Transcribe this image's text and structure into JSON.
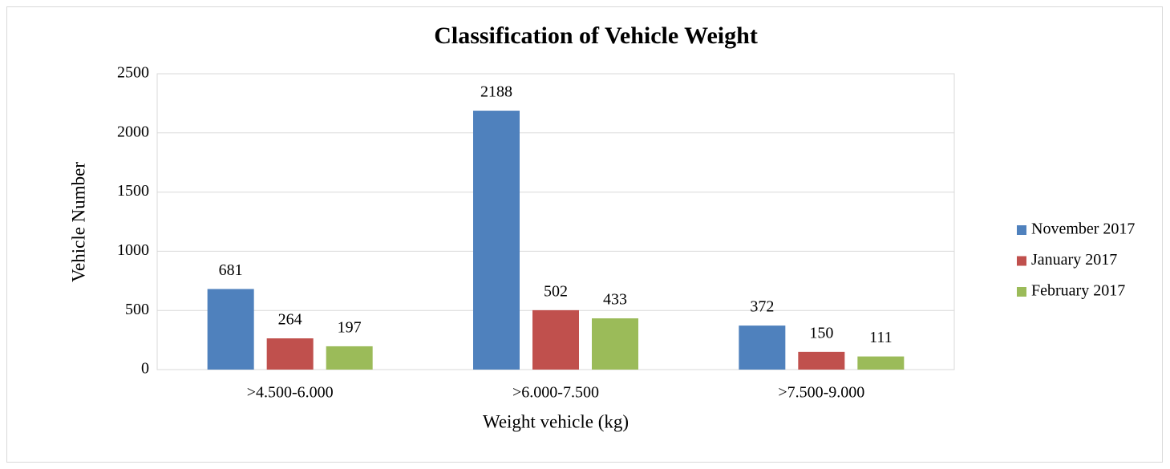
{
  "chart_data": {
    "type": "bar",
    "title": "Classification of Vehicle Weight",
    "x_label": "Weight vehicle (kg)",
    "y_label": "Vehicle Number",
    "categories": [
      ">4.500-6.000",
      ">6.000-7.500",
      ">7.500-9.000"
    ],
    "series": [
      {
        "name": "November 2017",
        "color": "#4f81bd",
        "values": [
          681,
          2188,
          372
        ]
      },
      {
        "name": "January 2017",
        "color": "#c0504d",
        "values": [
          264,
          502,
          150
        ]
      },
      {
        "name": "February 2017",
        "color": "#9bbb59",
        "values": [
          197,
          433,
          111
        ]
      }
    ],
    "ylim": [
      0,
      2500
    ],
    "yticks": [
      0,
      500,
      1000,
      1500,
      2000,
      2500
    ],
    "grid": true,
    "legend": "right"
  }
}
